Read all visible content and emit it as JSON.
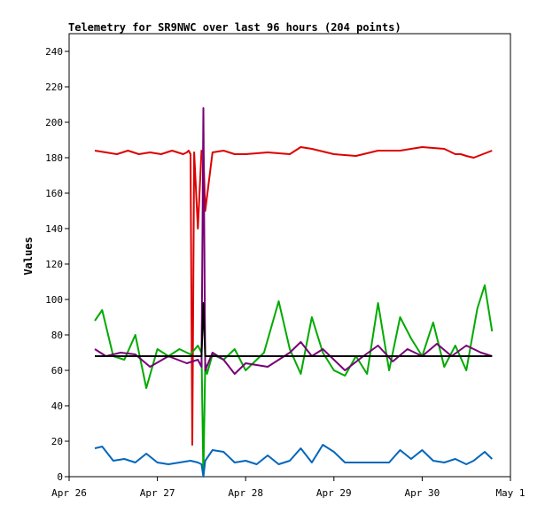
{
  "chart_data": {
    "type": "line",
    "title": "Telemetry for SR9NWC over last 96 hours (204 points)",
    "xlabel": "",
    "ylabel": "Values",
    "xlim": [
      "2024-04-26",
      "2024-05-01"
    ],
    "ylim": [
      0,
      250
    ],
    "grid": false,
    "legend": "none",
    "x_ticks": [
      "Apr 26",
      "Apr 27",
      "Apr 28",
      "Apr 29",
      "Apr 30",
      "May 1"
    ],
    "y_ticks": [
      "0",
      "20",
      "40",
      "60",
      "80",
      "100",
      "120",
      "140",
      "160",
      "180",
      "200",
      "220",
      "240"
    ],
    "series": [
      {
        "color": "#dd0000",
        "x": [
          "2024-04-26T07:00",
          "2024-04-26T10:00",
          "2024-04-26T13:00",
          "2024-04-26T16:00",
          "2024-04-26T19:00",
          "2024-04-26T22:00",
          "2024-04-27T01:00",
          "2024-04-27T04:00",
          "2024-04-27T07:00",
          "2024-04-27T08:00",
          "2024-04-27T08:30",
          "2024-04-27T09:00",
          "2024-04-27T09:30",
          "2024-04-27T10:00",
          "2024-04-27T11:00",
          "2024-04-27T12:00",
          "2024-04-27T12:30",
          "2024-04-27T13:00",
          "2024-04-27T15:00",
          "2024-04-27T18:00",
          "2024-04-27T21:00",
          "2024-04-28T00:00",
          "2024-04-28T06:00",
          "2024-04-28T12:00",
          "2024-04-28T15:00",
          "2024-04-28T18:00",
          "2024-04-29T00:00",
          "2024-04-29T06:00",
          "2024-04-29T12:00",
          "2024-04-29T18:00",
          "2024-04-30T00:00",
          "2024-04-30T06:00",
          "2024-04-30T09:00",
          "2024-04-30T10:30",
          "2024-04-30T12:00",
          "2024-04-30T14:00",
          "2024-04-30T19:00"
        ],
        "y": [
          184,
          183,
          182,
          184,
          182,
          183,
          182,
          184,
          182,
          183,
          184,
          182,
          18,
          183,
          140,
          184,
          183,
          150,
          183,
          184,
          182,
          182,
          183,
          182,
          186,
          185,
          182,
          181,
          184,
          184,
          186,
          185,
          182,
          182,
          181,
          180,
          184
        ]
      },
      {
        "color": "#00aa00",
        "x": [
          "2024-04-26T07:00",
          "2024-04-26T09:00",
          "2024-04-26T12:00",
          "2024-04-26T15:00",
          "2024-04-26T18:00",
          "2024-04-26T21:00",
          "2024-04-27T00:00",
          "2024-04-27T03:00",
          "2024-04-27T06:00",
          "2024-04-27T09:00",
          "2024-04-27T11:00",
          "2024-04-27T12:00",
          "2024-04-27T12:30",
          "2024-04-27T13:00",
          "2024-04-27T13:30",
          "2024-04-27T15:00",
          "2024-04-27T18:00",
          "2024-04-27T21:00",
          "2024-04-28T00:00",
          "2024-04-28T05:00",
          "2024-04-28T09:00",
          "2024-04-28T12:00",
          "2024-04-28T15:00",
          "2024-04-28T18:00",
          "2024-04-28T21:00",
          "2024-04-29T00:00",
          "2024-04-29T03:00",
          "2024-04-29T06:00",
          "2024-04-29T09:00",
          "2024-04-29T12:00",
          "2024-04-29T15:00",
          "2024-04-29T18:00",
          "2024-04-29T21:00",
          "2024-04-30T00:00",
          "2024-04-30T03:00",
          "2024-04-30T06:00",
          "2024-04-30T09:00",
          "2024-04-30T12:00",
          "2024-04-30T15:00",
          "2024-04-30T17:00",
          "2024-04-30T19:00"
        ],
        "y": [
          88,
          94,
          68,
          66,
          80,
          50,
          72,
          68,
          72,
          69,
          74,
          70,
          0,
          64,
          58,
          69,
          66,
          72,
          60,
          70,
          99,
          72,
          58,
          90,
          70,
          60,
          57,
          68,
          58,
          98,
          60,
          90,
          78,
          68,
          87,
          62,
          74,
          60,
          95,
          108,
          82
        ]
      },
      {
        "color": "#770077",
        "x": [
          "2024-04-26T07:00",
          "2024-04-26T10:00",
          "2024-04-26T14:00",
          "2024-04-26T18:00",
          "2024-04-26T22:00",
          "2024-04-27T03:00",
          "2024-04-27T08:00",
          "2024-04-27T11:00",
          "2024-04-27T12:00",
          "2024-04-27T12:30",
          "2024-04-27T13:00",
          "2024-04-27T15:00",
          "2024-04-27T18:00",
          "2024-04-27T21:00",
          "2024-04-28T00:00",
          "2024-04-28T06:00",
          "2024-04-28T12:00",
          "2024-04-28T15:00",
          "2024-04-28T18:00",
          "2024-04-28T21:00",
          "2024-04-29T03:00",
          "2024-04-29T08:00",
          "2024-04-29T12:00",
          "2024-04-29T16:00",
          "2024-04-29T20:00",
          "2024-04-30T00:00",
          "2024-04-30T04:00",
          "2024-04-30T08:00",
          "2024-04-30T12:00",
          "2024-04-30T16:00",
          "2024-04-30T19:00"
        ],
        "y": [
          72,
          68,
          70,
          69,
          62,
          68,
          64,
          66,
          62,
          208,
          60,
          70,
          66,
          58,
          64,
          62,
          70,
          76,
          68,
          72,
          60,
          68,
          74,
          65,
          72,
          68,
          75,
          68,
          74,
          70,
          68
        ]
      },
      {
        "color": "#000000",
        "x": [
          "2024-04-26T07:00",
          "2024-04-27T11:00",
          "2024-04-27T12:00",
          "2024-04-27T12:30",
          "2024-04-27T13:00",
          "2024-04-30T19:00"
        ],
        "y": [
          68,
          68,
          68,
          98,
          68,
          68
        ]
      },
      {
        "color": "#0066bb",
        "x": [
          "2024-04-26T07:00",
          "2024-04-26T09:00",
          "2024-04-26T12:00",
          "2024-04-26T15:00",
          "2024-04-26T18:00",
          "2024-04-26T21:00",
          "2024-04-27T00:00",
          "2024-04-27T03:00",
          "2024-04-27T06:00",
          "2024-04-27T09:00",
          "2024-04-27T11:00",
          "2024-04-27T12:00",
          "2024-04-27T12:30",
          "2024-04-27T13:00",
          "2024-04-27T15:00",
          "2024-04-27T18:00",
          "2024-04-27T21:00",
          "2024-04-28T00:00",
          "2024-04-28T03:00",
          "2024-04-28T06:00",
          "2024-04-28T09:00",
          "2024-04-28T12:00",
          "2024-04-28T15:00",
          "2024-04-28T18:00",
          "2024-04-28T21:00",
          "2024-04-29T00:00",
          "2024-04-29T03:00",
          "2024-04-29T06:00",
          "2024-04-29T09:00",
          "2024-04-29T12:00",
          "2024-04-29T15:00",
          "2024-04-29T18:00",
          "2024-04-29T21:00",
          "2024-04-30T00:00",
          "2024-04-30T03:00",
          "2024-04-30T06:00",
          "2024-04-30T09:00",
          "2024-04-30T12:00",
          "2024-04-30T14:00",
          "2024-04-30T17:00",
          "2024-04-30T19:00"
        ],
        "y": [
          16,
          17,
          9,
          10,
          8,
          13,
          8,
          7,
          8,
          9,
          8,
          7,
          0,
          9,
          15,
          14,
          8,
          9,
          7,
          12,
          7,
          9,
          16,
          8,
          18,
          14,
          8,
          8,
          8,
          8,
          8,
          15,
          10,
          15,
          9,
          8,
          10,
          7,
          9,
          14,
          10
        ]
      }
    ]
  }
}
